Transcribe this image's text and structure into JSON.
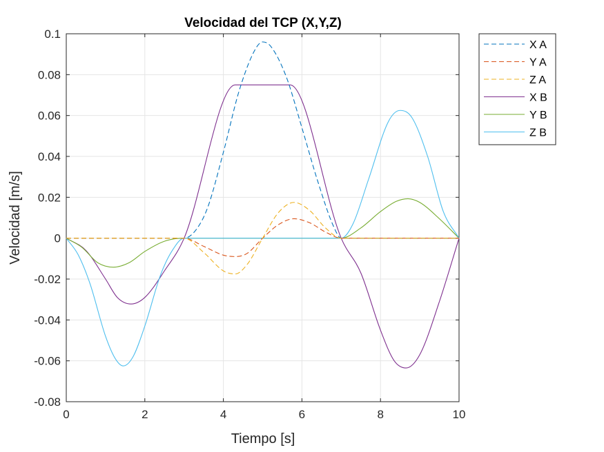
{
  "chart_data": {
    "type": "line",
    "title": "Velocidad del TCP (X,Y,Z)",
    "xlabel": "Tiempo [s]",
    "ylabel": "Velocidad [m/s]",
    "xlim": [
      0,
      10
    ],
    "ylim": [
      -0.08,
      0.1
    ],
    "xticks": [
      0,
      2,
      4,
      6,
      8,
      10
    ],
    "xtick_labels": [
      "0",
      "2",
      "4",
      "6",
      "8",
      "10"
    ],
    "yticks": [
      -0.08,
      -0.06,
      -0.04,
      -0.02,
      0,
      0.02,
      0.04,
      0.06,
      0.08,
      0.1
    ],
    "ytick_labels": [
      "-0.08",
      "-0.06",
      "-0.04",
      "-0.02",
      "0",
      "0.02",
      "0.04",
      "0.06",
      "0.08",
      "0.1"
    ],
    "grid": true,
    "legend_position": "outside-top-right",
    "series": [
      {
        "name": "X A",
        "color": "#0072BD",
        "style": "dashed",
        "x": [
          0,
          3.0,
          3.3,
          3.6,
          4.0,
          4.4,
          4.8,
          5.0,
          5.2,
          5.6,
          6.0,
          6.4,
          6.8,
          7.0,
          10
        ],
        "y": [
          0,
          0,
          0.004,
          0.015,
          0.042,
          0.072,
          0.092,
          0.096,
          0.094,
          0.079,
          0.054,
          0.028,
          0.006,
          0,
          0
        ]
      },
      {
        "name": "Y A",
        "color": "#D95319",
        "style": "dashed",
        "x": [
          0,
          3.0,
          3.5,
          4.0,
          4.3,
          4.6,
          5.0,
          5.4,
          5.8,
          6.2,
          6.6,
          7.0,
          10
        ],
        "y": [
          0,
          0,
          -0.004,
          -0.0083,
          -0.009,
          -0.0075,
          0,
          0.0066,
          0.0095,
          0.0075,
          0.003,
          0,
          0
        ]
      },
      {
        "name": "Z A",
        "color": "#EDB120",
        "style": "dashed",
        "x": [
          0,
          3.0,
          3.5,
          4.0,
          4.3,
          4.6,
          5.0,
          5.4,
          5.8,
          6.2,
          6.6,
          7.0,
          10
        ],
        "y": [
          0,
          0,
          -0.007,
          -0.016,
          -0.0175,
          -0.013,
          0,
          0.0125,
          0.0175,
          0.0135,
          0.005,
          0,
          0
        ]
      },
      {
        "name": "X B",
        "color": "#7E2F8E",
        "style": "solid",
        "x": [
          0,
          0.5,
          1.0,
          1.3,
          1.65,
          2.0,
          2.5,
          3.0,
          4.3,
          5.7,
          7.0,
          7.5,
          8.0,
          8.35,
          8.65,
          9.0,
          9.5,
          10.0
        ],
        "y": [
          0,
          -0.006,
          -0.02,
          -0.029,
          -0.0322,
          -0.029,
          -0.016,
          0,
          0.075,
          0.075,
          0,
          -0.017,
          -0.045,
          -0.06,
          -0.0635,
          -0.057,
          -0.031,
          0
        ]
      },
      {
        "name": "Y B",
        "color": "#77AC30",
        "style": "solid",
        "x": [
          0,
          0.4,
          0.8,
          1.2,
          1.6,
          2.0,
          2.5,
          3.0,
          7.0,
          7.5,
          8.0,
          8.4,
          8.7,
          9.0,
          9.5,
          10.0
        ],
        "y": [
          0,
          -0.0045,
          -0.012,
          -0.0142,
          -0.012,
          -0.0065,
          -0.0015,
          0,
          0,
          0.005,
          0.013,
          0.018,
          0.0193,
          0.0175,
          0.0095,
          0
        ]
      },
      {
        "name": "Z B",
        "color": "#4DBEEE",
        "style": "solid",
        "x": [
          0,
          0.3,
          0.6,
          1.0,
          1.25,
          1.45,
          1.7,
          2.0,
          2.4,
          2.7,
          3.0,
          7.0,
          7.3,
          7.7,
          8.2,
          8.5,
          8.8,
          9.2,
          9.6,
          10.0
        ],
        "y": [
          0,
          -0.008,
          -0.022,
          -0.048,
          -0.059,
          -0.0625,
          -0.058,
          -0.043,
          -0.018,
          -0.006,
          0,
          0,
          0.007,
          0.029,
          0.057,
          0.0625,
          0.059,
          0.04,
          0.013,
          0
        ]
      }
    ]
  }
}
